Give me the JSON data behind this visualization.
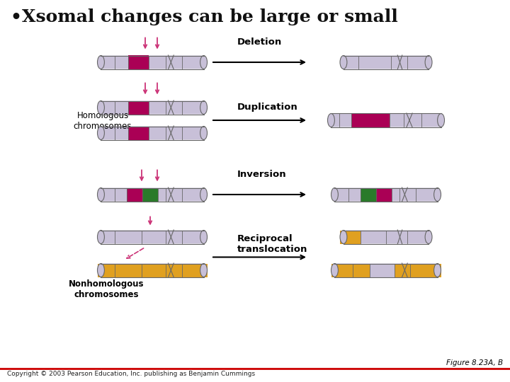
{
  "title": "•Xsomal changes can be large or small",
  "title_color": "#111111",
  "title_fontsize": 18,
  "bg_color": "#ffffff",
  "colors": {
    "chrom_body": "#c8c0d8",
    "magenta": "#aa0055",
    "green": "#2a7a2a",
    "orange": "#e0a020",
    "arrow_pink": "#cc3377",
    "ec": "#666666"
  },
  "labels": {
    "deletion": "Deletion",
    "homologous": "Homologous\nchromosomes",
    "duplication": "Duplication",
    "inversion": "Inversion",
    "reciprocal": "Reciprocal\ntranslocation",
    "nonhomologous": "Nonhomologous\nchromosomes",
    "figure": "Figure 8.23A, B",
    "copyright": "Copyright © 2003 Pearson Education, Inc. publishing as Benjamin Cummings"
  }
}
